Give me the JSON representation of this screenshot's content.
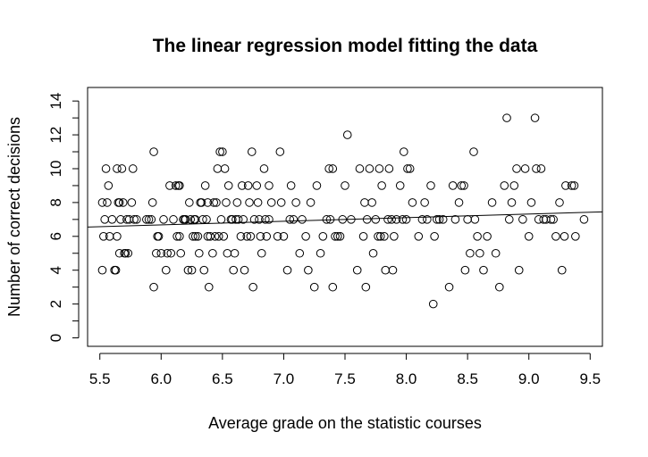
{
  "chart_data": {
    "type": "scatter",
    "title": "The linear regression model fitting the data",
    "xlabel": "Average grade on the statistic courses",
    "ylabel": "Number of correct decisions",
    "xlim": [
      5.4,
      9.6
    ],
    "ylim": [
      -0.5,
      14.8
    ],
    "xticks": [
      "5.5",
      "6.0",
      "6.5",
      "7.0",
      "7.5",
      "8.0",
      "8.5",
      "9.0",
      "9.5"
    ],
    "yticks": [
      "0",
      "2",
      "4",
      "6",
      "8",
      "10",
      "12",
      "14"
    ],
    "grid": false,
    "marker": "open-circle",
    "regression_line": {
      "x": [
        5.4,
        9.6
      ],
      "y": [
        6.55,
        7.45
      ]
    },
    "points": [
      [
        5.52,
        4
      ],
      [
        5.52,
        8
      ],
      [
        5.53,
        6
      ],
      [
        5.54,
        7
      ],
      [
        5.55,
        10
      ],
      [
        5.56,
        8
      ],
      [
        5.57,
        9
      ],
      [
        5.58,
        6
      ],
      [
        5.6,
        7
      ],
      [
        5.62,
        4
      ],
      [
        5.63,
        4
      ],
      [
        5.64,
        10
      ],
      [
        5.64,
        6
      ],
      [
        5.65,
        8
      ],
      [
        5.66,
        8
      ],
      [
        5.66,
        5
      ],
      [
        5.67,
        7
      ],
      [
        5.68,
        10
      ],
      [
        5.69,
        8
      ],
      [
        5.7,
        5
      ],
      [
        5.71,
        5
      ],
      [
        5.72,
        7
      ],
      [
        5.73,
        5
      ],
      [
        5.74,
        7
      ],
      [
        5.76,
        8
      ],
      [
        5.77,
        10
      ],
      [
        5.78,
        7
      ],
      [
        5.8,
        7
      ],
      [
        5.88,
        7
      ],
      [
        5.9,
        7
      ],
      [
        5.92,
        7
      ],
      [
        5.93,
        8
      ],
      [
        5.94,
        3
      ],
      [
        5.94,
        11
      ],
      [
        5.96,
        5
      ],
      [
        5.97,
        6
      ],
      [
        5.98,
        6
      ],
      [
        6.0,
        5
      ],
      [
        6.02,
        7
      ],
      [
        6.04,
        4
      ],
      [
        6.05,
        5
      ],
      [
        6.07,
        9
      ],
      [
        6.08,
        5
      ],
      [
        6.1,
        7
      ],
      [
        6.12,
        9
      ],
      [
        6.13,
        6
      ],
      [
        6.14,
        9
      ],
      [
        6.15,
        6
      ],
      [
        6.15,
        9
      ],
      [
        6.16,
        5
      ],
      [
        6.18,
        7
      ],
      [
        6.19,
        7
      ],
      [
        6.2,
        7
      ],
      [
        6.22,
        4
      ],
      [
        6.23,
        8
      ],
      [
        6.24,
        7
      ],
      [
        6.25,
        4
      ],
      [
        6.26,
        6
      ],
      [
        6.27,
        7
      ],
      [
        6.28,
        6
      ],
      [
        6.28,
        7
      ],
      [
        6.3,
        6
      ],
      [
        6.31,
        5
      ],
      [
        6.32,
        8
      ],
      [
        6.33,
        8
      ],
      [
        6.34,
        7
      ],
      [
        6.35,
        4
      ],
      [
        6.36,
        9
      ],
      [
        6.37,
        7
      ],
      [
        6.38,
        6
      ],
      [
        6.38,
        8
      ],
      [
        6.39,
        3
      ],
      [
        6.4,
        6
      ],
      [
        6.42,
        5
      ],
      [
        6.43,
        8
      ],
      [
        6.44,
        6
      ],
      [
        6.45,
        8
      ],
      [
        6.46,
        10
      ],
      [
        6.47,
        6
      ],
      [
        6.48,
        11
      ],
      [
        6.49,
        7
      ],
      [
        6.5,
        11
      ],
      [
        6.51,
        6
      ],
      [
        6.52,
        10
      ],
      [
        6.53,
        8
      ],
      [
        6.54,
        5
      ],
      [
        6.55,
        9
      ],
      [
        6.57,
        7
      ],
      [
        6.58,
        7
      ],
      [
        6.59,
        4
      ],
      [
        6.6,
        5
      ],
      [
        6.61,
        7
      ],
      [
        6.62,
        8
      ],
      [
        6.63,
        7
      ],
      [
        6.65,
        6
      ],
      [
        6.66,
        9
      ],
      [
        6.67,
        7
      ],
      [
        6.68,
        4
      ],
      [
        6.7,
        6
      ],
      [
        6.71,
        9
      ],
      [
        6.72,
        8
      ],
      [
        6.73,
        6
      ],
      [
        6.74,
        11
      ],
      [
        6.75,
        3
      ],
      [
        6.76,
        7
      ],
      [
        6.78,
        9
      ],
      [
        6.79,
        8
      ],
      [
        6.8,
        7
      ],
      [
        6.81,
        6
      ],
      [
        6.82,
        5
      ],
      [
        6.84,
        10
      ],
      [
        6.85,
        7
      ],
      [
        6.86,
        6
      ],
      [
        6.88,
        7
      ],
      [
        6.88,
        9
      ],
      [
        6.9,
        8
      ],
      [
        6.95,
        6
      ],
      [
        6.97,
        11
      ],
      [
        6.98,
        8
      ],
      [
        7.0,
        6
      ],
      [
        7.03,
        4
      ],
      [
        7.05,
        7
      ],
      [
        7.06,
        9
      ],
      [
        7.08,
        7
      ],
      [
        7.1,
        8
      ],
      [
        7.13,
        5
      ],
      [
        7.15,
        7
      ],
      [
        7.18,
        6
      ],
      [
        7.2,
        4
      ],
      [
        7.22,
        8
      ],
      [
        7.25,
        3
      ],
      [
        7.27,
        9
      ],
      [
        7.3,
        5
      ],
      [
        7.32,
        6
      ],
      [
        7.35,
        7
      ],
      [
        7.37,
        10
      ],
      [
        7.38,
        7
      ],
      [
        7.4,
        10
      ],
      [
        7.4,
        3
      ],
      [
        7.42,
        6
      ],
      [
        7.44,
        6
      ],
      [
        7.46,
        6
      ],
      [
        7.48,
        7
      ],
      [
        7.5,
        9
      ],
      [
        7.52,
        12
      ],
      [
        7.55,
        7
      ],
      [
        7.6,
        4
      ],
      [
        7.62,
        10
      ],
      [
        7.65,
        6
      ],
      [
        7.66,
        8
      ],
      [
        7.67,
        3
      ],
      [
        7.68,
        7
      ],
      [
        7.7,
        10
      ],
      [
        7.72,
        8
      ],
      [
        7.73,
        5
      ],
      [
        7.75,
        7
      ],
      [
        7.77,
        6
      ],
      [
        7.78,
        10
      ],
      [
        7.79,
        6
      ],
      [
        7.8,
        9
      ],
      [
        7.82,
        6
      ],
      [
        7.83,
        4
      ],
      [
        7.85,
        7
      ],
      [
        7.86,
        10
      ],
      [
        7.88,
        7
      ],
      [
        7.89,
        4
      ],
      [
        7.9,
        6
      ],
      [
        7.92,
        7
      ],
      [
        7.95,
        9
      ],
      [
        7.97,
        7
      ],
      [
        7.98,
        11
      ],
      [
        8.0,
        7
      ],
      [
        8.01,
        10
      ],
      [
        8.03,
        10
      ],
      [
        8.05,
        8
      ],
      [
        8.1,
        6
      ],
      [
        8.13,
        7
      ],
      [
        8.15,
        8
      ],
      [
        8.17,
        7
      ],
      [
        8.2,
        9
      ],
      [
        8.22,
        2
      ],
      [
        8.23,
        6
      ],
      [
        8.25,
        7
      ],
      [
        8.27,
        7
      ],
      [
        8.3,
        7
      ],
      [
        8.35,
        3
      ],
      [
        8.38,
        9
      ],
      [
        8.4,
        7
      ],
      [
        8.43,
        8
      ],
      [
        8.45,
        9
      ],
      [
        8.47,
        9
      ],
      [
        8.48,
        4
      ],
      [
        8.5,
        7
      ],
      [
        8.52,
        5
      ],
      [
        8.55,
        11
      ],
      [
        8.56,
        7
      ],
      [
        8.58,
        6
      ],
      [
        8.6,
        5
      ],
      [
        8.63,
        4
      ],
      [
        8.66,
        6
      ],
      [
        8.7,
        8
      ],
      [
        8.73,
        5
      ],
      [
        8.76,
        3
      ],
      [
        8.8,
        9
      ],
      [
        8.82,
        13
      ],
      [
        8.84,
        7
      ],
      [
        8.86,
        8
      ],
      [
        8.88,
        9
      ],
      [
        8.9,
        10
      ],
      [
        8.92,
        4
      ],
      [
        8.95,
        7
      ],
      [
        8.97,
        10
      ],
      [
        9.0,
        6
      ],
      [
        9.02,
        8
      ],
      [
        9.05,
        13
      ],
      [
        9.06,
        10
      ],
      [
        9.08,
        7
      ],
      [
        9.1,
        10
      ],
      [
        9.12,
        7
      ],
      [
        9.14,
        7
      ],
      [
        9.18,
        7
      ],
      [
        9.2,
        7
      ],
      [
        9.22,
        6
      ],
      [
        9.25,
        8
      ],
      [
        9.27,
        4
      ],
      [
        9.29,
        6
      ],
      [
        9.3,
        9
      ],
      [
        9.35,
        9
      ],
      [
        9.37,
        9
      ],
      [
        9.38,
        6
      ],
      [
        9.45,
        7
      ]
    ]
  }
}
